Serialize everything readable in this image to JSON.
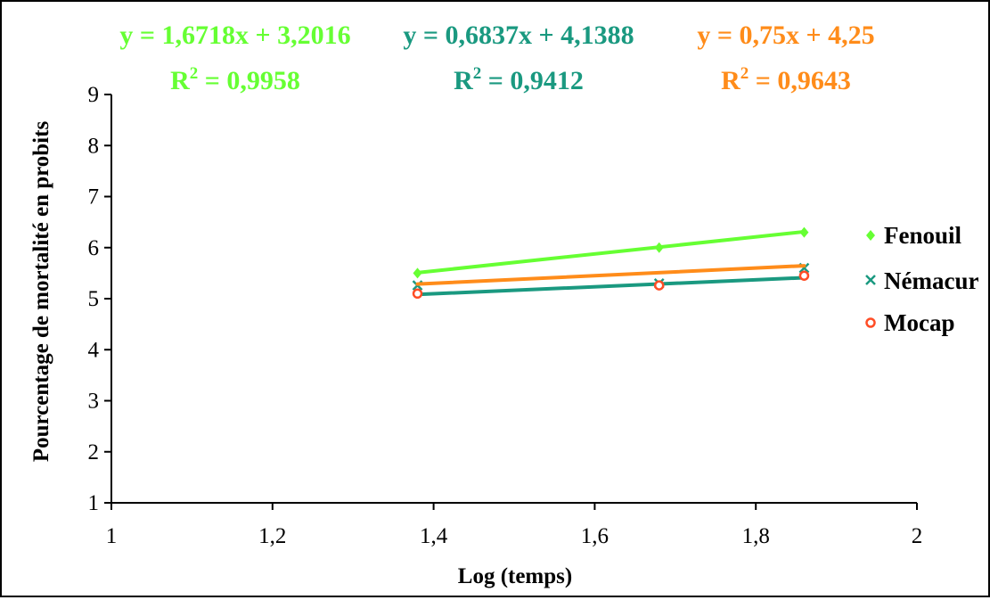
{
  "chart_data": {
    "type": "line",
    "title": "",
    "xlabel": "Log (temps)",
    "ylabel": "Pourcentage de mortalité en probits",
    "xlim": [
      1,
      2
    ],
    "ylim": [
      1,
      9
    ],
    "x_ticks": [
      "1",
      "1,2",
      "1,4",
      "1,6",
      "1,8",
      "2"
    ],
    "y_ticks": [
      "1",
      "2",
      "3",
      "4",
      "5",
      "6",
      "7",
      "8",
      "9"
    ],
    "grid": false,
    "legend_position": "right",
    "series": [
      {
        "name": "Fenouil",
        "color": "#66ff33",
        "marker": "diamond",
        "x": [
          1.38,
          1.68,
          1.86
        ],
        "y": [
          5.5,
          6.0,
          6.3
        ],
        "trendline": {
          "slope": 1.6718,
          "intercept": 3.2016
        },
        "equation": "y = 1,6718x + 3,2016",
        "r2_label": "R",
        "r2_value": " = 0,9958"
      },
      {
        "name": "Némacur",
        "color": "#1a9980",
        "marker": "x",
        "x": [
          1.38,
          1.68,
          1.86
        ],
        "y": [
          5.26,
          5.3,
          5.6
        ],
        "trendline": {
          "slope": 0.6837,
          "intercept": 4.1388
        },
        "equation": "y = 0,6837x + 4,1388",
        "r2_label": "R",
        "r2_value": " = 0,9412"
      },
      {
        "name": "Mocap",
        "color": "#ff8c1a",
        "marker": "circle",
        "x": [
          1.38,
          1.68,
          1.86
        ],
        "y": [
          5.1,
          5.26,
          5.45
        ],
        "trendline": {
          "slope": 0.75,
          "intercept": 4.25
        },
        "equation": "y = 0,75x + 4,25",
        "r2_label": "R",
        "r2_value": " = 0,9643"
      }
    ]
  }
}
